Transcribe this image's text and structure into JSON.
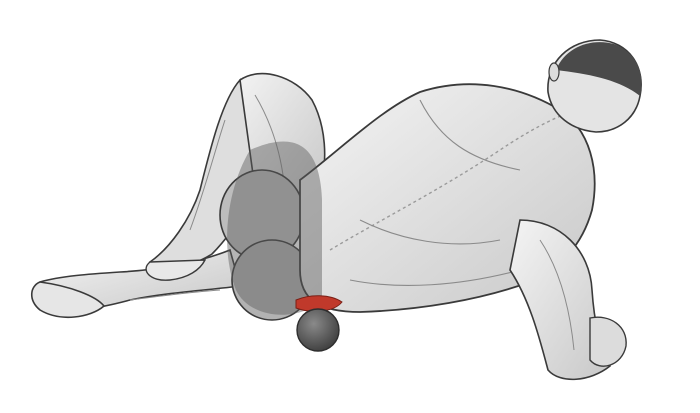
{
  "illustration": {
    "subject": "anatomical-figure-lying-on-massage-ball",
    "colors": {
      "background": "#ffffff",
      "skin_light": "#ececec",
      "skin_mid": "#cfcfcf",
      "skin_dark": "#9a9a9a",
      "outline": "#3a3a3a",
      "highlight_overlay": "#5a5a5a",
      "target_muscle": "#c0392b",
      "ball": "#5e5e5e",
      "hair": "#4a4a4a"
    }
  }
}
